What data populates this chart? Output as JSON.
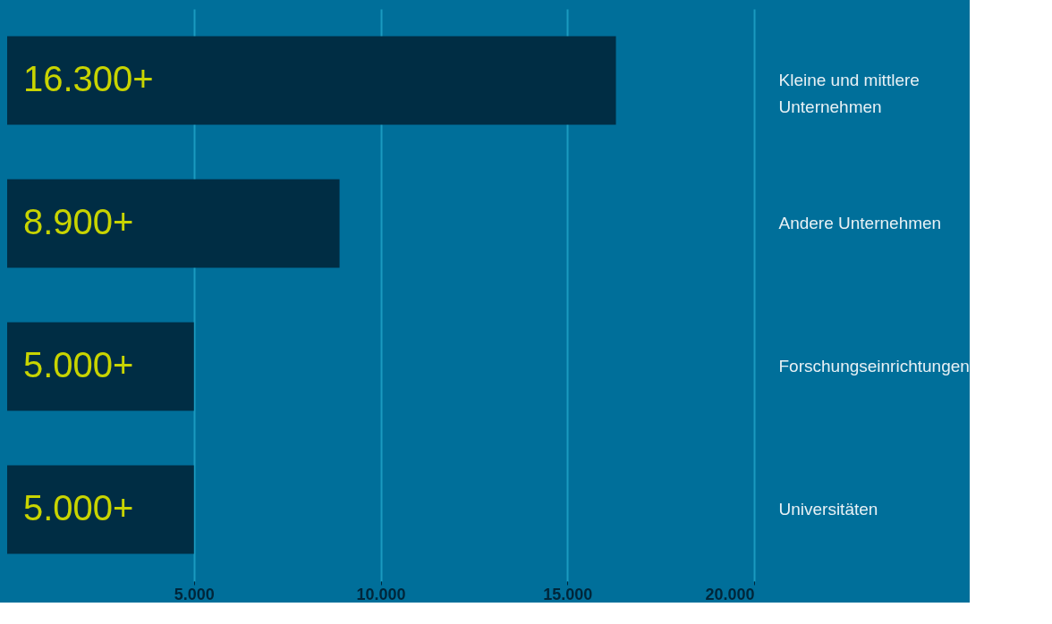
{
  "chart_data": {
    "type": "bar",
    "orientation": "horizontal",
    "categories": [
      "Kleine und mittlere Unternehmen",
      "Andere Unternehmen",
      "Forschungseinrichtungen",
      "Universitäten"
    ],
    "values": [
      16300,
      8900,
      5000,
      5000
    ],
    "value_labels": [
      "16.300+",
      "8.900+",
      "5.000+",
      "5.000+"
    ],
    "color": "#002d44",
    "xlim": [
      0,
      20000
    ],
    "xticks": [
      {
        "value": 5000,
        "label": "5.000"
      },
      {
        "value": 10000,
        "label": "10.000"
      },
      {
        "value": 15000,
        "label": "15.000"
      },
      {
        "value": 20000,
        "label": "20.000"
      }
    ],
    "grid": "x"
  }
}
